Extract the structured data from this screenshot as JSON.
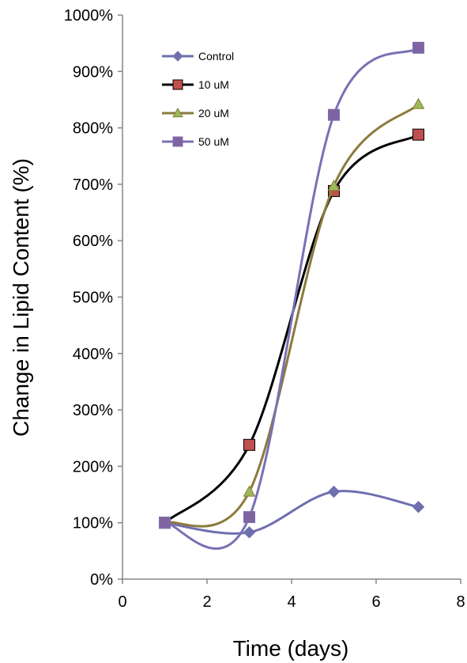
{
  "chart_data": {
    "type": "line",
    "xlabel": "Time (days)",
    "ylabel": "Change in Lipid Content (%)",
    "xlim": [
      0,
      8
    ],
    "ylim": [
      0,
      1000
    ],
    "x_ticks": [
      "0",
      "2",
      "4",
      "6",
      "8"
    ],
    "y_ticks": [
      "0%",
      "100%",
      "200%",
      "300%",
      "400%",
      "500%",
      "600%",
      "700%",
      "800%",
      "900%",
      "1000%"
    ],
    "grid": false,
    "legend_position": "top-left",
    "x": [
      1,
      3,
      5,
      7
    ],
    "series": [
      {
        "name": "Control",
        "values": [
          100,
          83,
          155,
          128
        ],
        "color": "#6f6fb0",
        "marker": "diamond"
      },
      {
        "name": "10 uM",
        "values": [
          100,
          238,
          688,
          788
        ],
        "color": "#000000",
        "marker": "square",
        "marker_fill": "#c0504d"
      },
      {
        "name": "20 uM",
        "values": [
          100,
          155,
          697,
          842
        ],
        "color": "#8c7a3c",
        "marker": "triangle",
        "marker_fill": "#9bbb59"
      },
      {
        "name": "50 uM",
        "values": [
          100,
          110,
          823,
          942
        ],
        "color": "#7a70b3",
        "marker": "square",
        "marker_fill": "#8064a2"
      }
    ]
  }
}
